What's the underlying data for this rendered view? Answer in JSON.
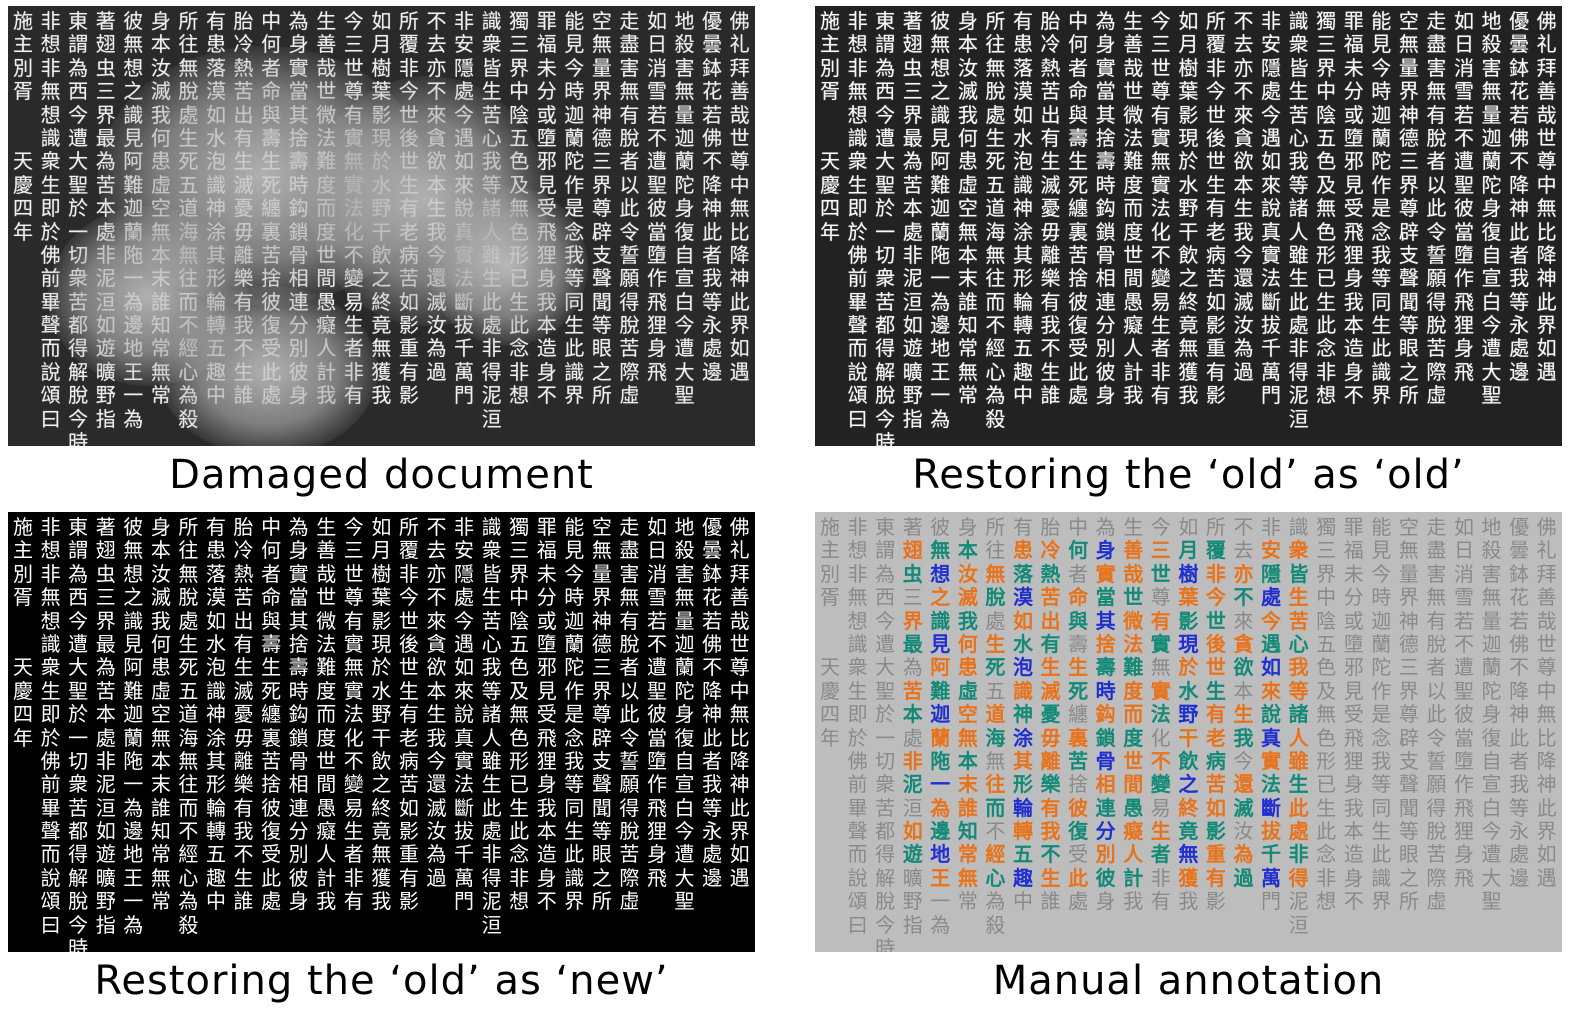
{
  "captions": {
    "damaged": "Damaged document",
    "old_as_old": "Restoring the ‘old’ as ‘old’",
    "old_as_new": "Restoring the ‘old’ as ‘new’",
    "manual": "Manual annotation"
  },
  "columns": [
    "佛礼拜善哉世尊中無比降神此界如遇",
    "優曇鉢花若佛不降神此者我等永處邊",
    "地殺害無量迦蘭陀身復自宣白今遭大聖",
    "如日消雪若不遭聖彼當墮作飛狸身飛",
    "走盡害無有脫者以此令誓願得脫苦際虛",
    "空無量界神德三界尊辟支聲聞等眼之所",
    "能見今時迦蘭陀作是念我等同生此識界",
    "罪福未分或墮邪見受飛狸身我本造身不",
    "獨三界中陰五色及無色形已生此念非想",
    "識衆皆生苦心我等諸人雖生此處非得泥洹",
    "非安隱處今遇如來說真實法斷拔千萬門",
    "不去亦不來貪欲本生我今還滅汝為過",
    "所覆非今世後世生有老病苦如影重有影",
    "如月樹葉影現於水野干飲之終竟無獲我",
    "今三世尊有實無實法化不變易生者非有",
    "生善哉世微法難度而度世間愚癡人計我",
    "為身實當其捨壽時鈎鎖骨相連分別彼身",
    "中何者命與壽生死纏裏苦捨彼復受此處",
    "胎冷熱苦出有生滅憂毋離樂有我不生誰",
    "有患落漠如水泡識神涂其形輪轉五趣中",
    "所往無脫處生死五道海無往而不經心為殺",
    "身本汝滅我何患虛空無本末誰知常無常",
    "彼無想之識見阿難迦蘭陁一為邊地王一為",
    "著翅虫三界最為苦本處非泥洹如遊曠野指",
    "東謂為西今遭大聖於一切衆苦都得解脫今時",
    "非想非無想識衆生即於佛前畢聲而說頌曰",
    "施主別胥　　天慶四年"
  ],
  "annotation_colors": {
    "orange": "#e8731c",
    "teal": "#138a78",
    "blue": "#1f2fd0"
  }
}
